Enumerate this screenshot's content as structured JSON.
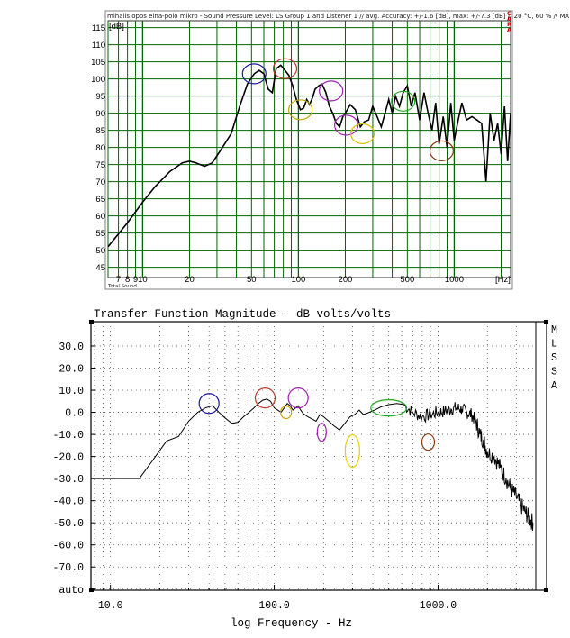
{
  "chart_data": [
    {
      "type": "line",
      "title": "mihalis opos elna-polo mikro - Sound Pressure Level: LS Group 1 and Listener 1 // avg. Accuracy: +/-1.6 [dB], max: +/-7.3 [dB] // 20 °C, 60 % // MX",
      "ylabel": "[dB]",
      "xlabel": "[Hz]",
      "footer": "Total Sound",
      "side_label": "CARA",
      "x_scale": "log",
      "xlim": [
        6.0,
        2300
      ],
      "ylim": [
        42,
        117
      ],
      "grid": true,
      "line_color": "#000000",
      "grid_color": "#006600",
      "y_ticks": [
        45,
        50,
        55,
        60,
        65,
        70,
        75,
        80,
        85,
        90,
        95,
        100,
        105,
        110,
        115
      ],
      "x_ticks": [
        {
          "value": 7,
          "label": "7"
        },
        {
          "value": 8,
          "label": "8"
        },
        {
          "value": 9,
          "label": "9"
        },
        {
          "value": 10,
          "label": "10"
        },
        {
          "value": 20,
          "label": "20"
        },
        {
          "value": 50,
          "label": "50"
        },
        {
          "value": 100,
          "label": "100"
        },
        {
          "value": 200,
          "label": "200"
        },
        {
          "value": 500,
          "label": "500"
        },
        {
          "value": 1000,
          "label": "1000"
        }
      ],
      "x": [
        6,
        8,
        10,
        12,
        15,
        18,
        20,
        22,
        25,
        28,
        32,
        37,
        42,
        47,
        52,
        56,
        60,
        64,
        68,
        72,
        77,
        82,
        87,
        92,
        97,
        103,
        108,
        113,
        118,
        123,
        128,
        135,
        142,
        150,
        158,
        166,
        175,
        184,
        193,
        200,
        215,
        232,
        250,
        265,
        282,
        300,
        320,
        340,
        360,
        380,
        400,
        420,
        445,
        470,
        500,
        530,
        560,
        600,
        640,
        680,
        720,
        760,
        800,
        850,
        900,
        950,
        1000,
        1060,
        1120,
        1200,
        1300,
        1400,
        1500,
        1600,
        1700,
        1800,
        1900,
        2000,
        2100,
        2200,
        2300
      ],
      "y": [
        51,
        58,
        64,
        68.5,
        73,
        75.5,
        76,
        75.5,
        74.5,
        75.5,
        79.5,
        84,
        92,
        98.5,
        101.5,
        102.5,
        101.5,
        97,
        96,
        103,
        104,
        102.5,
        101,
        98,
        94,
        91,
        91.5,
        94,
        92.5,
        94.5,
        97,
        98,
        98.5,
        96,
        92,
        90,
        87,
        86,
        89,
        90,
        92.5,
        91,
        86,
        87.5,
        88,
        92,
        89,
        86,
        90,
        94,
        90,
        95,
        92,
        96,
        98,
        92,
        96,
        88,
        96,
        90,
        85,
        93,
        81,
        89,
        80,
        93,
        82,
        88,
        93,
        88,
        89,
        88,
        87,
        70,
        90,
        82,
        87,
        78,
        92,
        76,
        90
      ],
      "highlights": [
        {
          "x": 52,
          "y": 101.5,
          "color": "#1a1a9a"
        },
        {
          "x": 82,
          "y": 103,
          "color": "#c0392b"
        },
        {
          "x": 103,
          "y": 91,
          "color": "#b8a800"
        },
        {
          "x": 162,
          "y": 96.5,
          "color": "#a020b0"
        },
        {
          "x": 203,
          "y": 86.5,
          "color": "#a020b0"
        },
        {
          "x": 258,
          "y": 84,
          "color": "#d4c000"
        },
        {
          "x": 470,
          "y": 93.5,
          "color": "#22aa22"
        },
        {
          "x": 830,
          "y": 79,
          "color": "#8b3a10"
        }
      ]
    },
    {
      "type": "line",
      "title": "Transfer Function Magnitude - dB volts/volts",
      "xlabel": "log Frequency - Hz",
      "ylabel": "",
      "side_label": "MLSSA",
      "x_scale": "log",
      "xlim": [
        7.6,
        3950
      ],
      "ylim": [
        -80.5,
        41
      ],
      "grid": "dotted",
      "line_color": "#000000",
      "y_tick_labels": [
        "30.0",
        "20.0",
        "10.0",
        "0.0",
        "-10.0",
        "-20.0",
        "-30.0",
        "-40.0",
        "-50.0",
        "-60.0",
        "-70.0",
        "auto"
      ],
      "x_tick_labels": [
        {
          "value": 10,
          "label": "10.0"
        },
        {
          "value": 100,
          "label": "100.0"
        },
        {
          "value": 1000,
          "label": "1000.0"
        }
      ],
      "x": [
        7.6,
        10,
        12,
        15,
        18,
        22,
        26,
        30,
        34,
        38,
        42,
        46,
        50,
        55,
        60,
        65,
        70,
        75,
        80,
        85,
        90,
        95,
        100,
        105,
        110,
        115,
        120,
        125,
        130,
        135,
        140,
        145,
        150,
        160,
        170,
        180,
        190,
        200,
        215,
        230,
        250,
        270,
        290,
        310,
        330,
        350,
        380,
        410,
        450,
        500,
        560,
        620,
        700,
        800,
        900,
        1000,
        1100,
        1200,
        1300,
        1400,
        1500,
        1600,
        1700,
        1800,
        1900,
        2000,
        2200,
        2400,
        2600,
        2800,
        3000,
        3200,
        3400,
        3600,
        3800
      ],
      "y": [
        -30,
        -30,
        -30,
        -30,
        -22,
        -13,
        -11,
        -4,
        0,
        2,
        3,
        0,
        -2.5,
        -5,
        -4.5,
        -2,
        0,
        2,
        4,
        5.5,
        6,
        5,
        2,
        1,
        0,
        2,
        4,
        3,
        1,
        2,
        3,
        1,
        -0.5,
        -2,
        -3,
        -4,
        -1,
        -2,
        -4,
        -6,
        -8,
        -5,
        -2,
        -1,
        1,
        -1,
        0,
        1,
        2.5,
        3.5,
        4,
        3.5,
        0,
        -2,
        -1,
        0,
        0.5,
        1.5,
        2,
        1.5,
        0,
        -1,
        -4,
        -10,
        -13,
        -18,
        -20,
        -25,
        -30,
        -35,
        -38,
        -42,
        -45,
        -48,
        -50
      ]
    }
  ],
  "annotations": [
    {
      "chart": 1,
      "x": 40,
      "y": 4,
      "color": "#1a1a9a"
    },
    {
      "chart": 1,
      "x": 88,
      "y": 6.5,
      "color": "#c0392b"
    },
    {
      "chart": 1,
      "x": 118,
      "y": 0,
      "color": "#d4a000"
    },
    {
      "chart": 1,
      "x": 140,
      "y": 6.5,
      "color": "#a020b0"
    },
    {
      "chart": 1,
      "x": 195,
      "y": -9,
      "color": "#a020b0"
    },
    {
      "chart": 1,
      "x": 300,
      "y": -17.5,
      "color": "#e8d000"
    },
    {
      "chart": 1,
      "x": 500,
      "y": 2,
      "color": "#22aa22"
    },
    {
      "chart": 1,
      "x": 870,
      "y": -13.5,
      "color": "#8b3a10"
    }
  ]
}
